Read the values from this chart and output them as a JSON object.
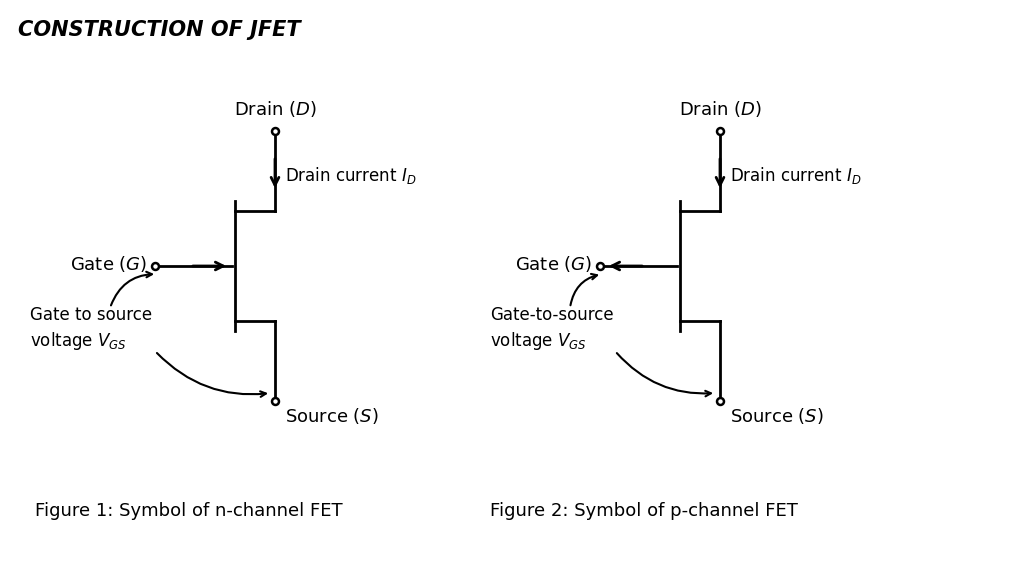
{
  "title": "CONSTRUCTION OF JFET",
  "fig1_caption": "Figure 1: Symbol of n-channel FET",
  "fig2_caption": "Figure 2: Symbol of p-channel FET",
  "bg_color": "#ffffff",
  "line_color": "#000000",
  "fig1": {
    "vgs_label1": "Gate to source",
    "vgs_label2": "voltage $V_{GS}$"
  },
  "fig2": {
    "vgs_label1": "Gate-to-source",
    "vgs_label2": "voltage $V_{GS}$"
  }
}
